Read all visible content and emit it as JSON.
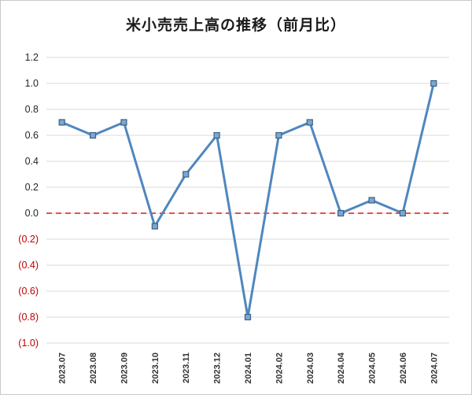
{
  "chart_data": {
    "type": "line",
    "title": "米小売売上高の推移（前月比）",
    "categories": [
      "2023.07",
      "2023.08",
      "2023.09",
      "2023.10",
      "2023.11",
      "2023.12",
      "2024.01",
      "2024.02",
      "2024.03",
      "2024.04",
      "2024.05",
      "2024.06",
      "2024.07"
    ],
    "series": [
      {
        "name": "前月比",
        "values": [
          0.7,
          0.6,
          0.7,
          -0.1,
          0.3,
          0.6,
          -0.8,
          0.6,
          0.7,
          0.0,
          0.1,
          0.0,
          1.0
        ]
      }
    ],
    "ylim": [
      -1.0,
      1.2
    ],
    "ytick_step": 0.2,
    "yticks": [
      {
        "value": 1.2,
        "label": "1.2"
      },
      {
        "value": 1.0,
        "label": "1.0"
      },
      {
        "value": 0.8,
        "label": "0.8"
      },
      {
        "value": 0.6,
        "label": "0.6"
      },
      {
        "value": 0.4,
        "label": "0.4"
      },
      {
        "value": 0.2,
        "label": "0.2"
      },
      {
        "value": 0.0,
        "label": "0.0"
      },
      {
        "value": -0.2,
        "label": "(0.2)"
      },
      {
        "value": -0.4,
        "label": "(0.4)"
      },
      {
        "value": -0.6,
        "label": "(0.6)"
      },
      {
        "value": -0.8,
        "label": "(0.8)"
      },
      {
        "value": -1.0,
        "label": "(1.0)"
      }
    ],
    "grid": true,
    "legend": "none",
    "zero_line": {
      "value": 0.0,
      "style": "dashed",
      "color": "#e03a3a"
    },
    "colors": {
      "line": "#4f87be",
      "marker_fill": "#7da7cc",
      "marker_stroke": "#38618c",
      "grid": "#d9d9d9",
      "tick_label": "#262626",
      "x_label": "#333333",
      "negative_label": "#c00000",
      "border": "#c9c9c9",
      "background": "#ffffff"
    }
  }
}
